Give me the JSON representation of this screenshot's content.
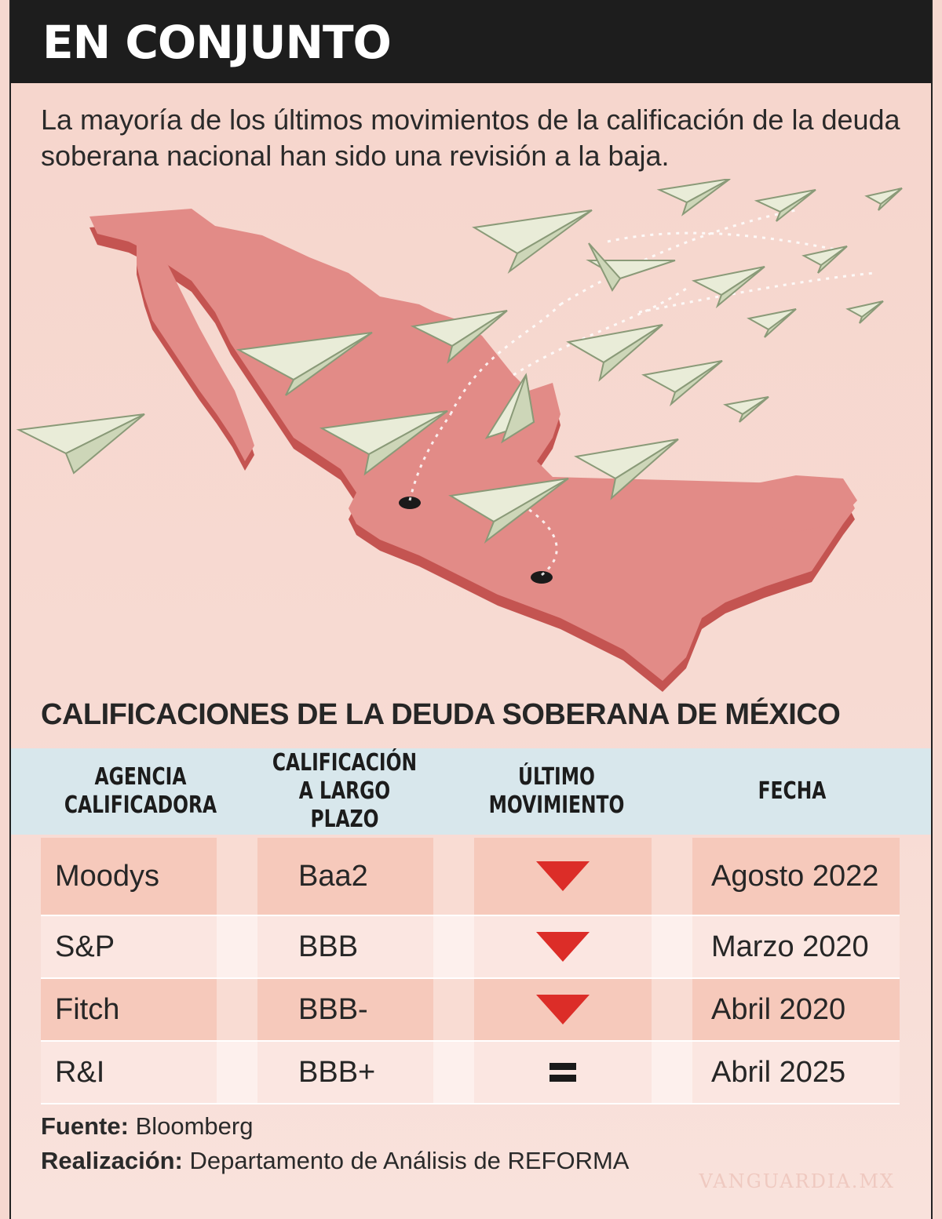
{
  "header": {
    "title": "EN CONJUNTO"
  },
  "intro": "La mayoría de los últimos movimientos de la calificación de la deuda soberana nacional han sido una revisión a la baja.",
  "colors": {
    "header_bg": "#1d1d1d",
    "map": "#e08a86",
    "table_header": "#d8e7ec",
    "row_dark": "#f6c9bb",
    "row_light": "#fbe6e1",
    "down_arrow": "#dc2d28"
  },
  "icons": {
    "movement_down": "down-triangle-icon",
    "movement_equal": "equal-icon",
    "plane": "paper-airplane-money-icon"
  },
  "table": {
    "title": "CALIFICACIONES DE LA DEUDA SOBERANA DE MÉXICO",
    "columns": [
      "AGENCIA\nCALIFICADORA",
      "CALIFICACIÓN\nA LARGO PLAZO",
      "ÚLTIMO\nMOVIMIENTO",
      "FECHA"
    ],
    "rows": [
      {
        "agency": "Moodys",
        "rating": "Baa2",
        "movement": "down",
        "date": "Agosto 2022"
      },
      {
        "agency": "S&P",
        "rating": "BBB",
        "movement": "down",
        "date": "Marzo 2020"
      },
      {
        "agency": "Fitch",
        "rating": "BBB-",
        "movement": "down",
        "date": "Abril 2020"
      },
      {
        "agency": "R&I",
        "rating": "BBB+",
        "movement": "equal",
        "date": "Abril 2025"
      }
    ]
  },
  "footer": {
    "source_label": "Fuente:",
    "source_value": "Bloomberg",
    "credit_label": "Realización:",
    "credit_value": "Departamento de Análisis de REFORMA"
  },
  "watermark": "VANGUARDIA.MX"
}
